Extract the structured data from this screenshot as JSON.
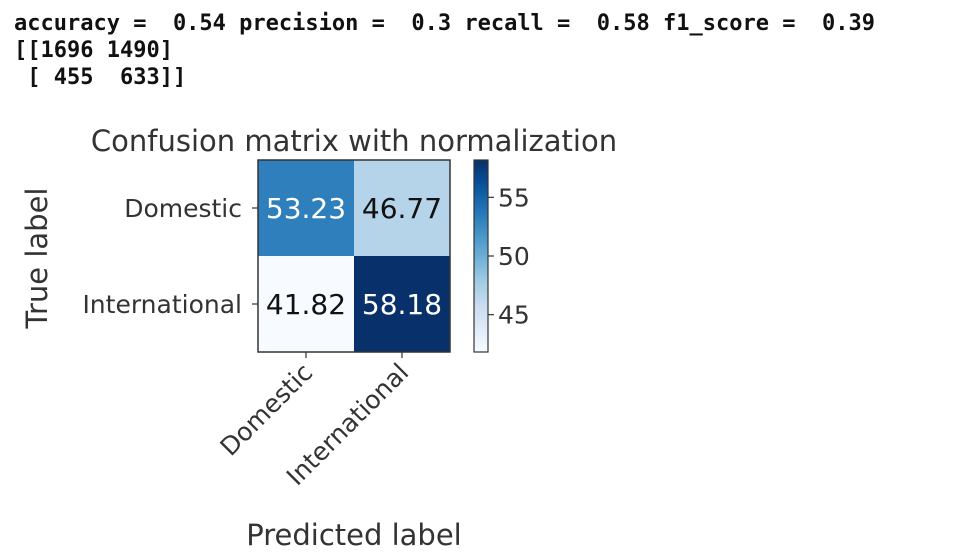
{
  "console": {
    "metrics_line": "accuracy =  0.54 precision =  0.3 recall =  0.58 f1_score =  0.39",
    "matrix_line_1": "[[1696 1490]",
    "matrix_line_2": " [ 455  633]]"
  },
  "chart_data": {
    "type": "heatmap",
    "title": "Confusion matrix with normalization",
    "xlabel": "Predicted label",
    "ylabel": "True label",
    "rows": [
      "Domestic",
      "International"
    ],
    "columns": [
      "Domestic",
      "International"
    ],
    "values": [
      [
        53.23,
        46.77
      ],
      [
        41.82,
        58.18
      ]
    ],
    "colormap": "Blues",
    "colorbar": {
      "range": [
        41.82,
        58.18
      ],
      "ticks": [
        45,
        50,
        55
      ]
    }
  },
  "colors": {
    "low": "#f7fbff",
    "high": "#08306b",
    "text_dark": "#111111",
    "text_light": "#ffffff",
    "label": "#333333"
  }
}
